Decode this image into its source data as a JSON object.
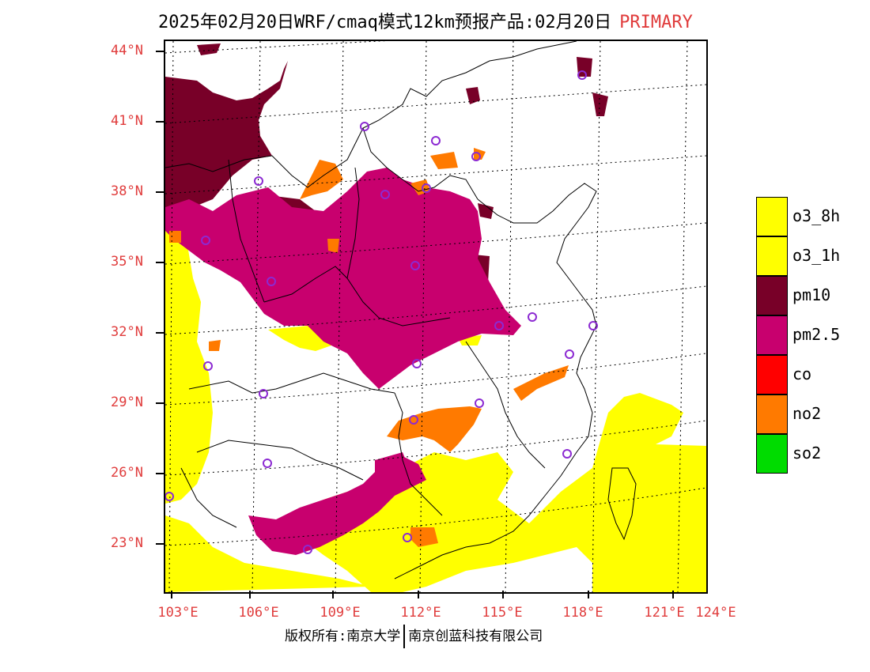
{
  "title": {
    "text": "2025年02月20日WRF/cmaq模式12km预报产品:02月20日",
    "flag": "PRIMARY"
  },
  "colors": {
    "o3_8h": "#ffff00",
    "o3_1h": "#ffff00",
    "pm10": "#780028",
    "pm25": "#c8006e",
    "co": "#ff0000",
    "no2": "#ff7a00",
    "so2": "#00dc00",
    "axis_label": "#e03c3c",
    "station": "#8c2ad2"
  },
  "lat_labels": [
    "44°N",
    "41°N",
    "38°N",
    "35°N",
    "32°N",
    "29°N",
    "26°N",
    "23°N"
  ],
  "lon_labels": [
    "103°E",
    "106°E",
    "109°E",
    "112°E",
    "115°E",
    "118°E",
    "121°E",
    "124°E"
  ],
  "legend": [
    {
      "label": "o3_8h",
      "color": "#ffff00"
    },
    {
      "label": "o3_1h",
      "color": "#ffff00"
    },
    {
      "label": "pm10",
      "color": "#780028"
    },
    {
      "label": "pm2.5",
      "color": "#c8006e"
    },
    {
      "label": "co",
      "color": "#ff0000"
    },
    {
      "label": "no2",
      "color": "#ff7a00"
    },
    {
      "label": "so2",
      "color": "#00dc00"
    }
  ],
  "footer": {
    "left": "版权所有:南京大学",
    "right": "南京创蓝科技有限公司"
  }
}
